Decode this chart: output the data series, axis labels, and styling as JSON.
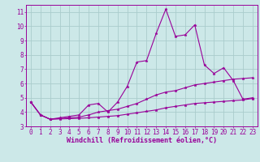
{
  "background_color": "#cce8e8",
  "grid_color": "#aacccc",
  "line_color": "#990099",
  "marker": "*",
  "xlabel": "Windchill (Refroidissement éolien,°C)",
  "xlabel_fontsize": 6.0,
  "tick_fontsize": 5.5,
  "xlim": [
    -0.5,
    23.5
  ],
  "ylim": [
    3,
    11.5
  ],
  "yticks": [
    3,
    4,
    5,
    6,
    7,
    8,
    9,
    10,
    11
  ],
  "xticks": [
    0,
    1,
    2,
    3,
    4,
    5,
    6,
    7,
    8,
    9,
    10,
    11,
    12,
    13,
    14,
    15,
    16,
    17,
    18,
    19,
    20,
    21,
    22,
    23
  ],
  "series": [
    {
      "x": [
        0,
        1,
        2,
        3,
        4,
        5,
        6,
        7,
        8,
        9,
        10,
        11,
        12,
        13,
        14,
        15,
        16,
        17,
        18,
        19,
        20,
        21,
        22,
        23
      ],
      "y": [
        4.7,
        3.8,
        3.5,
        3.6,
        3.7,
        3.8,
        4.5,
        4.6,
        4.0,
        4.7,
        5.8,
        7.5,
        7.6,
        9.5,
        11.2,
        9.3,
        9.4,
        10.1,
        7.3,
        6.7,
        7.1,
        6.2,
        4.9,
        5.0
      ]
    },
    {
      "x": [
        0,
        1,
        2,
        3,
        4,
        5,
        6,
        7,
        8,
        9,
        10,
        11,
        12,
        13,
        14,
        15,
        16,
        17,
        18,
        19,
        20,
        21,
        22,
        23
      ],
      "y": [
        4.7,
        3.8,
        3.5,
        3.55,
        3.6,
        3.65,
        3.8,
        4.0,
        4.1,
        4.2,
        4.4,
        4.6,
        4.9,
        5.2,
        5.4,
        5.5,
        5.7,
        5.9,
        6.0,
        6.1,
        6.2,
        6.3,
        6.35,
        6.4
      ]
    },
    {
      "x": [
        0,
        1,
        2,
        3,
        4,
        5,
        6,
        7,
        8,
        9,
        10,
        11,
        12,
        13,
        14,
        15,
        16,
        17,
        18,
        19,
        20,
        21,
        22,
        23
      ],
      "y": [
        4.7,
        3.8,
        3.5,
        3.52,
        3.54,
        3.56,
        3.6,
        3.65,
        3.7,
        3.75,
        3.85,
        3.95,
        4.05,
        4.15,
        4.3,
        4.4,
        4.5,
        4.6,
        4.65,
        4.7,
        4.75,
        4.8,
        4.85,
        4.95
      ]
    }
  ]
}
